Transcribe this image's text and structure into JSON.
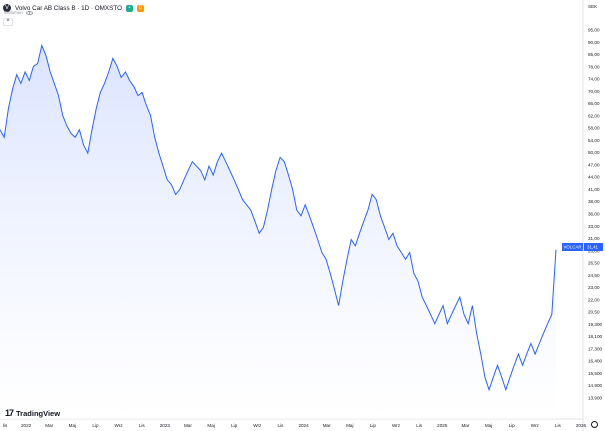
{
  "header": {
    "title": "Volvo Car AB Class B · 1D · OMXSTO",
    "symbol_icon": "volvo-logo-icon",
    "badge_green_icon": "status-open-icon",
    "badge_orange_label": "D",
    "sub_label": "Wolumen",
    "collapse_label": "^"
  },
  "currency": "SEK",
  "price_tag": {
    "symbol": "VOLCAR_B",
    "value": "31,41",
    "color": "#2962ff"
  },
  "branding": {
    "logo_mark": "17",
    "name": "TradingView"
  },
  "colors": {
    "line": "#2962ff",
    "fill_top": "#dbe4ff",
    "fill_bottom": "#ffffff"
  },
  "y_axis": {
    "ticks": [
      "95,00",
      "90,00",
      "85,00",
      "78,00",
      "74,00",
      "70,00",
      "66,00",
      "62,00",
      "58,00",
      "54,00",
      "50,00",
      "47,00",
      "44,00",
      "41,00",
      "38,00",
      "36,00",
      "33,00",
      "31,00",
      "28,00",
      "26,50",
      "24,50",
      "23,00",
      "22,00",
      "20,50",
      "19,300",
      "18,100",
      "17,300",
      "16,400",
      "15,500",
      "14,900",
      "13,900"
    ]
  },
  "x_axis": {
    "ticks": [
      "lis",
      "2022",
      "Mar",
      "Maj",
      "Lip",
      "Wrz",
      "Lis",
      "2023",
      "Mar",
      "Maj",
      "Lip",
      "Wrz",
      "Lis",
      "2024",
      "Mar",
      "Maj",
      "Lip",
      "Wrz",
      "Lis",
      "2025",
      "Mar",
      "Maj",
      "Lip",
      "Wrz",
      "Lis",
      "2026"
    ]
  },
  "chart_data": {
    "type": "area",
    "y_scale": "log",
    "points": [
      [
        0,
        56
      ],
      [
        1,
        54
      ],
      [
        2,
        62
      ],
      [
        3,
        68
      ],
      [
        4,
        73
      ],
      [
        5,
        70
      ],
      [
        6,
        74
      ],
      [
        7,
        71
      ],
      [
        8,
        76
      ],
      [
        9,
        77
      ],
      [
        10,
        84
      ],
      [
        11,
        80
      ],
      [
        12,
        74
      ],
      [
        13,
        70
      ],
      [
        14,
        66
      ],
      [
        15,
        60
      ],
      [
        16,
        57
      ],
      [
        17,
        55
      ],
      [
        18,
        54
      ],
      [
        19,
        56
      ],
      [
        20,
        52
      ],
      [
        21,
        50
      ],
      [
        22,
        56
      ],
      [
        23,
        62
      ],
      [
        24,
        67
      ],
      [
        25,
        70
      ],
      [
        26,
        74
      ],
      [
        27,
        79
      ],
      [
        28,
        76
      ],
      [
        29,
        72
      ],
      [
        30,
        74
      ],
      [
        31,
        71
      ],
      [
        32,
        69
      ],
      [
        33,
        66
      ],
      [
        34,
        67
      ],
      [
        35,
        63
      ],
      [
        36,
        60
      ],
      [
        37,
        54
      ],
      [
        38,
        50
      ],
      [
        39,
        47
      ],
      [
        40,
        44
      ],
      [
        41,
        43
      ],
      [
        42,
        41
      ],
      [
        43,
        42
      ],
      [
        44,
        44
      ],
      [
        45,
        46
      ],
      [
        46,
        48
      ],
      [
        47,
        47
      ],
      [
        48,
        46
      ],
      [
        49,
        44
      ],
      [
        50,
        47
      ],
      [
        51,
        45
      ],
      [
        52,
        48
      ],
      [
        53,
        50
      ],
      [
        54,
        48
      ],
      [
        55,
        46
      ],
      [
        56,
        44
      ],
      [
        57,
        42
      ],
      [
        58,
        40
      ],
      [
        59,
        39
      ],
      [
        60,
        38
      ],
      [
        61,
        36
      ],
      [
        62,
        34
      ],
      [
        63,
        35
      ],
      [
        64,
        38
      ],
      [
        65,
        42
      ],
      [
        66,
        46
      ],
      [
        67,
        49
      ],
      [
        68,
        48
      ],
      [
        69,
        45
      ],
      [
        70,
        42
      ],
      [
        71,
        38
      ],
      [
        72,
        37
      ],
      [
        73,
        39
      ],
      [
        74,
        37
      ],
      [
        75,
        35
      ],
      [
        76,
        33
      ],
      [
        77,
        31
      ],
      [
        78,
        30
      ],
      [
        79,
        28
      ],
      [
        80,
        26
      ],
      [
        81,
        24
      ],
      [
        82,
        27
      ],
      [
        83,
        30
      ],
      [
        84,
        33
      ],
      [
        85,
        32
      ],
      [
        86,
        34
      ],
      [
        87,
        36
      ],
      [
        88,
        38
      ],
      [
        89,
        41
      ],
      [
        90,
        40
      ],
      [
        91,
        37
      ],
      [
        92,
        35
      ],
      [
        93,
        33
      ],
      [
        94,
        34
      ],
      [
        95,
        32
      ],
      [
        96,
        31
      ],
      [
        97,
        30
      ],
      [
        98,
        31
      ],
      [
        99,
        28
      ],
      [
        100,
        27
      ],
      [
        101,
        25
      ],
      [
        102,
        24
      ],
      [
        103,
        23
      ],
      [
        104,
        22
      ],
      [
        105,
        23
      ],
      [
        106,
        24
      ],
      [
        107,
        22
      ],
      [
        108,
        23
      ],
      [
        109,
        24
      ],
      [
        110,
        25
      ],
      [
        111,
        23
      ],
      [
        112,
        22
      ],
      [
        113,
        24
      ],
      [
        114,
        21
      ],
      [
        115,
        19
      ],
      [
        116,
        17
      ],
      [
        117,
        16
      ],
      [
        118,
        17
      ],
      [
        119,
        18
      ],
      [
        120,
        17
      ],
      [
        121,
        16
      ],
      [
        122,
        17
      ],
      [
        123,
        18
      ],
      [
        124,
        19
      ],
      [
        125,
        18
      ],
      [
        126,
        19
      ],
      [
        127,
        20
      ],
      [
        128,
        19
      ],
      [
        129,
        20
      ],
      [
        130,
        21
      ],
      [
        131,
        22
      ],
      [
        132,
        23
      ],
      [
        133,
        31.41
      ]
    ]
  }
}
